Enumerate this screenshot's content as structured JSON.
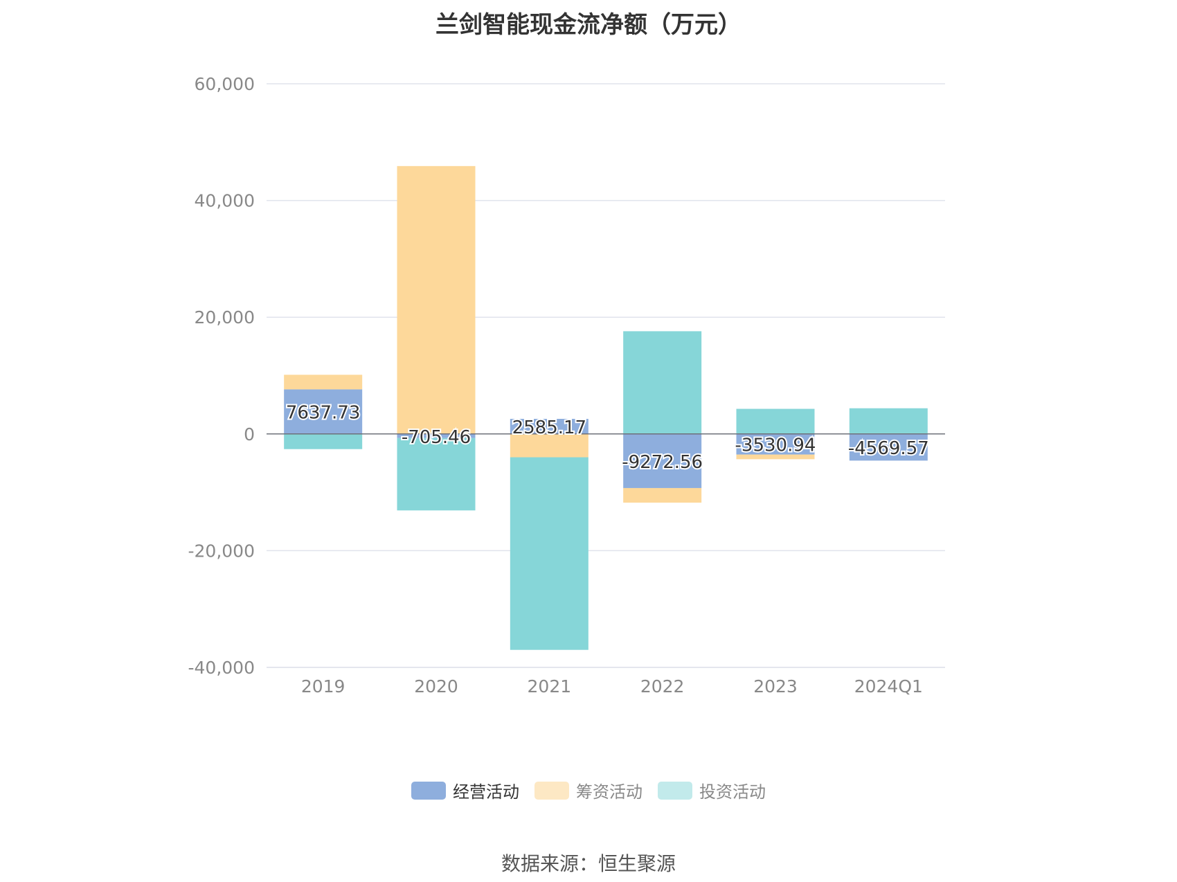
{
  "source_text": "数据来源：恒生聚源",
  "chart_data": {
    "type": "bar",
    "stacked": true,
    "title": "兰剑智能现金流净额（万元）",
    "xlabel": "",
    "ylabel": "",
    "categories": [
      "2019",
      "2020",
      "2021",
      "2022",
      "2023",
      "2024Q1"
    ],
    "ylim": [
      -40000,
      60000
    ],
    "yticks": [
      60000,
      40000,
      20000,
      0,
      -20000,
      -40000
    ],
    "ytick_labels": [
      "60,000",
      "40,000",
      "20,000",
      "0",
      "-20,000",
      "-40,000"
    ],
    "grid": true,
    "legend_position": "bottom",
    "series": [
      {
        "name": "经营活动",
        "color": "#8eaedd",
        "values": [
          7637.73,
          -705.46,
          2585.17,
          -9272.56,
          -3530.94,
          -4569.57
        ],
        "data_labels": [
          "7637.73",
          "-705.46",
          "2585.17",
          "-9272.56",
          "-3530.94",
          "-4569.57"
        ]
      },
      {
        "name": "筹资活动",
        "color": "#fdd89a",
        "values": [
          2500,
          45900,
          -4000,
          -2500,
          -800,
          100
        ]
      },
      {
        "name": "投资活动",
        "color": "#86d6d8",
        "values": [
          -2600,
          -12400,
          -33000,
          17600,
          4300,
          4300
        ]
      }
    ],
    "legend_colors": [
      "#8eaedd",
      "#fde8c4",
      "#c2eaeb"
    ],
    "legend_text_colors": [
      "#333333",
      "#888888",
      "#888888"
    ]
  }
}
